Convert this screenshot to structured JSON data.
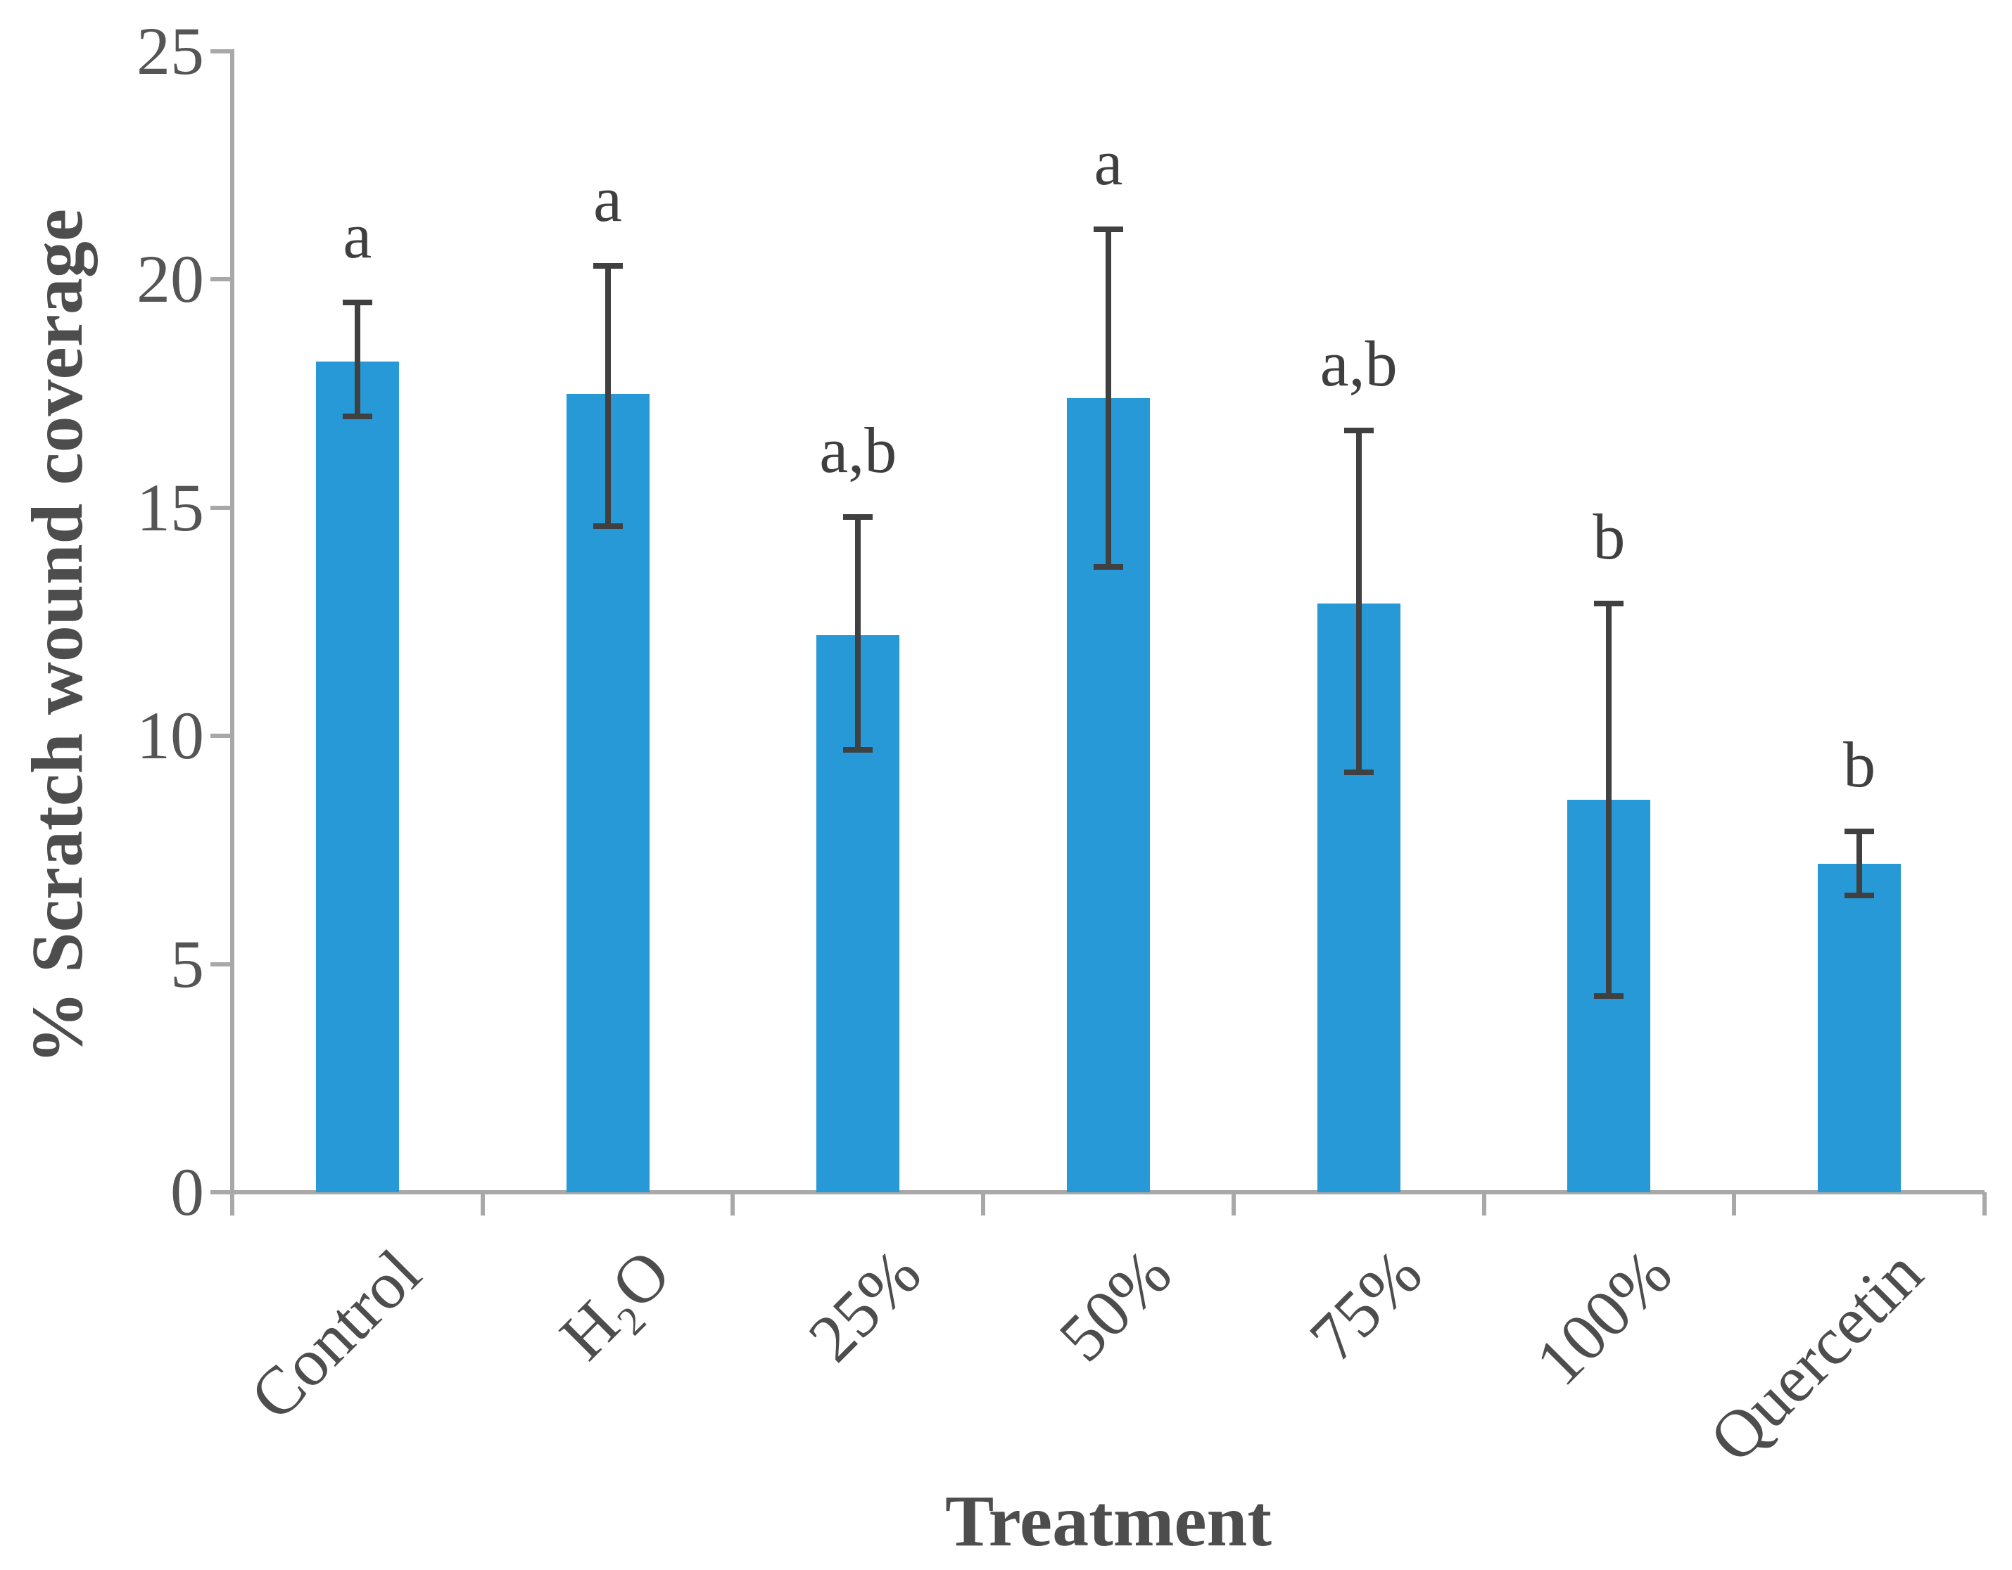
{
  "chart_data": {
    "type": "bar",
    "title": "",
    "xlabel": "Treatment",
    "ylabel": "% Scratch wound coverage",
    "ylim": [
      0,
      25
    ],
    "yticks": [
      0,
      5,
      10,
      15,
      20,
      25
    ],
    "grid": false,
    "legend": false,
    "categories": [
      "Control",
      "H₂O",
      "25%",
      "50%",
      "75%",
      "100%",
      "Quercetin"
    ],
    "series": [
      {
        "name": "% Scratch wound coverage",
        "values": [
          18.2,
          17.5,
          12.2,
          17.4,
          12.9,
          8.6,
          7.2
        ],
        "error_top": [
          19.5,
          20.3,
          14.8,
          21.1,
          16.7,
          12.9,
          7.9
        ],
        "error_bottom": [
          17.0,
          14.6,
          9.7,
          13.7,
          9.2,
          4.3,
          6.5
        ]
      }
    ],
    "significance_letters": [
      "a",
      "a",
      "a,b",
      "a",
      "a,b",
      "b",
      "b"
    ],
    "colors": {
      "bar_fill": "#2699d6",
      "error_bar": "#404040",
      "axis_line": "#a8a8a8",
      "tick_text": "#555555",
      "title_text": "#4d4d4d",
      "background": "#ffffff"
    }
  }
}
